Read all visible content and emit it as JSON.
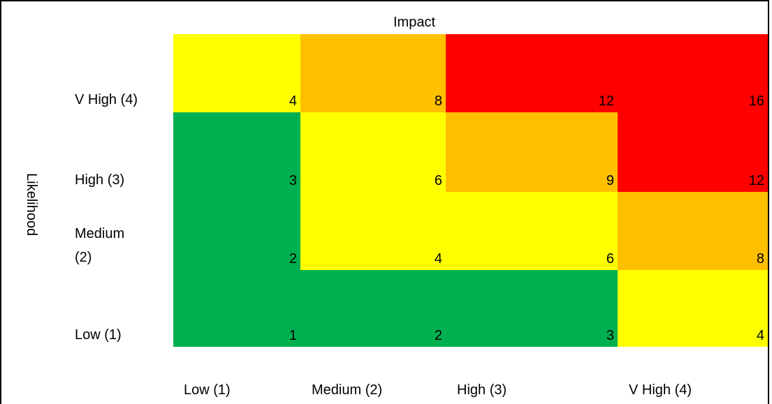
{
  "chart_data": {
    "type": "heatmap",
    "title": "",
    "xlabel": "Impact",
    "ylabel": "Likelihood",
    "x_categories": [
      "Low (1)",
      "Medium (2)",
      "High (3)",
      "V High (4)"
    ],
    "y_categories_top_to_bottom": [
      "V High (4)",
      "High (3)",
      "Medium (2)",
      "Low (1)"
    ],
    "y_category_display": [
      [
        "V High (4)"
      ],
      [
        "High (3)"
      ],
      [
        "Medium",
        "(2)"
      ],
      [
        "Low (1)"
      ]
    ],
    "grid": false,
    "colors": {
      "green": "#00B050",
      "yellow": "#FFFF00",
      "orange": "#FFC000",
      "red": "#FF0000"
    },
    "rows_top_to_bottom": [
      {
        "likelihood": "V High (4)",
        "values": [
          4,
          8,
          12,
          16
        ],
        "colors": [
          "yellow",
          "orange",
          "red",
          "red"
        ]
      },
      {
        "likelihood": "High (3)",
        "values": [
          3,
          6,
          9,
          12
        ],
        "colors": [
          "green",
          "yellow",
          "orange",
          "red"
        ]
      },
      {
        "likelihood": "Medium (2)",
        "values": [
          2,
          4,
          6,
          8
        ],
        "colors": [
          "green",
          "yellow",
          "yellow",
          "orange"
        ]
      },
      {
        "likelihood": "Low (1)",
        "values": [
          1,
          2,
          3,
          4
        ],
        "colors": [
          "green",
          "green",
          "green",
          "yellow"
        ]
      }
    ]
  }
}
